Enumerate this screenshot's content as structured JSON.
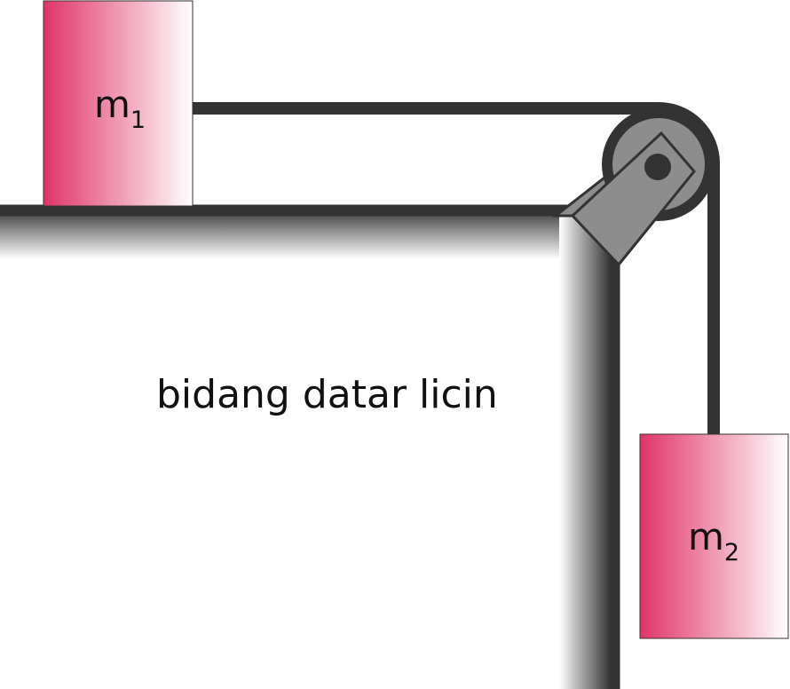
{
  "diagram": {
    "caption": "bidang datar licin",
    "mass1": {
      "symbol": "m",
      "subscript": "1"
    },
    "mass2": {
      "symbol": "m",
      "subscript": "2"
    }
  },
  "colors": {
    "block_gradient_start": "#e0336a",
    "block_gradient_end": "#ffffff",
    "rope": "#333333",
    "pulley_rim": "#333333",
    "pulley_disc": "#8d8d8d",
    "bracket": "#8d8d8d",
    "table_edge": "#333333"
  }
}
